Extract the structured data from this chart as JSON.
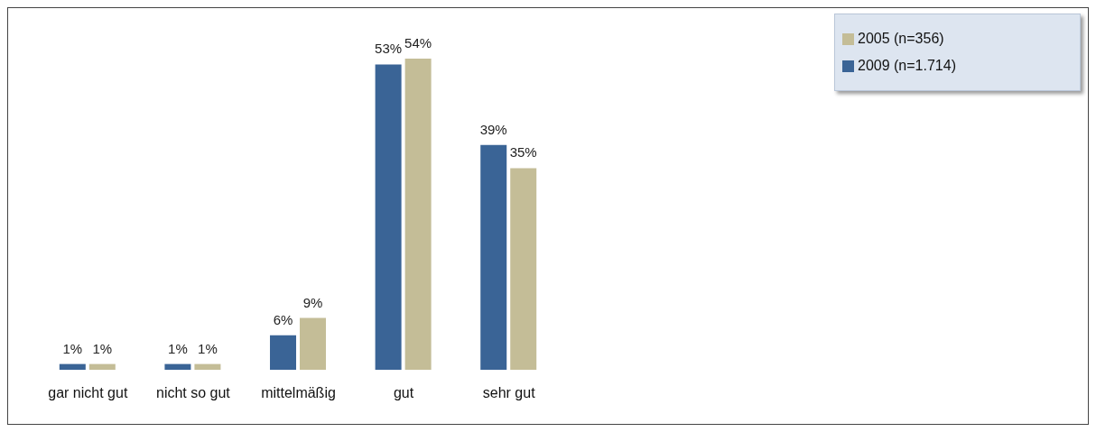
{
  "chart_data": {
    "type": "bar",
    "categories": [
      "gar nicht gut",
      "nicht so gut",
      "mittelmäßig",
      "gut",
      "sehr gut"
    ],
    "series": [
      {
        "name": "2009 (n=1.714)",
        "color": "#3a6496",
        "values": [
          1,
          1,
          6,
          53,
          39
        ],
        "value_labels": [
          "1%",
          "1%",
          "6%",
          "53%",
          "39%"
        ]
      },
      {
        "name": "2005 (n=356)",
        "color": "#c4bd97",
        "values": [
          1,
          1,
          9,
          54,
          35
        ],
        "value_labels": [
          "1%",
          "1%",
          "9%",
          "54%",
          "35%"
        ]
      }
    ],
    "legend": "top right",
    "grid": false
  }
}
